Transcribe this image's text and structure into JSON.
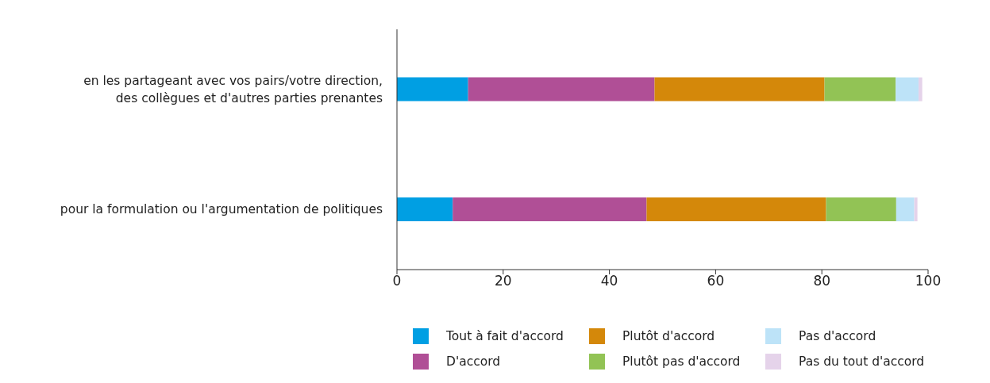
{
  "chart_data": {
    "type": "bar",
    "orientation": "horizontal",
    "stacked": true,
    "categories": [
      "en les partageant avec vos pairs/votre direction, des collègues et d'autres parties prenantes",
      "pour la formulation ou l'argumentation de politiques"
    ],
    "series": [
      {
        "name": "Tout à fait d'accord",
        "color": "#009fe3",
        "values": [
          13.4,
          10.5
        ]
      },
      {
        "name": "D'accord",
        "color": "#b04f96",
        "values": [
          35.1,
          36.5
        ]
      },
      {
        "name": "Plutôt d'accord",
        "color": "#d4880a",
        "values": [
          32.0,
          33.8
        ]
      },
      {
        "name": "Plutôt pas d'accord",
        "color": "#92c355",
        "values": [
          13.4,
          13.2
        ]
      },
      {
        "name": "Pas d'accord",
        "color": "#bde3f8",
        "values": [
          4.3,
          3.4
        ]
      },
      {
        "name": "Pas du tout d'accord",
        "color": "#e5d3ea",
        "values": [
          0.7,
          0.6
        ]
      }
    ],
    "xlim": [
      0,
      100
    ],
    "xticks": [
      0,
      20,
      40,
      60,
      80,
      100
    ],
    "grid": false,
    "legend": "bottom"
  }
}
